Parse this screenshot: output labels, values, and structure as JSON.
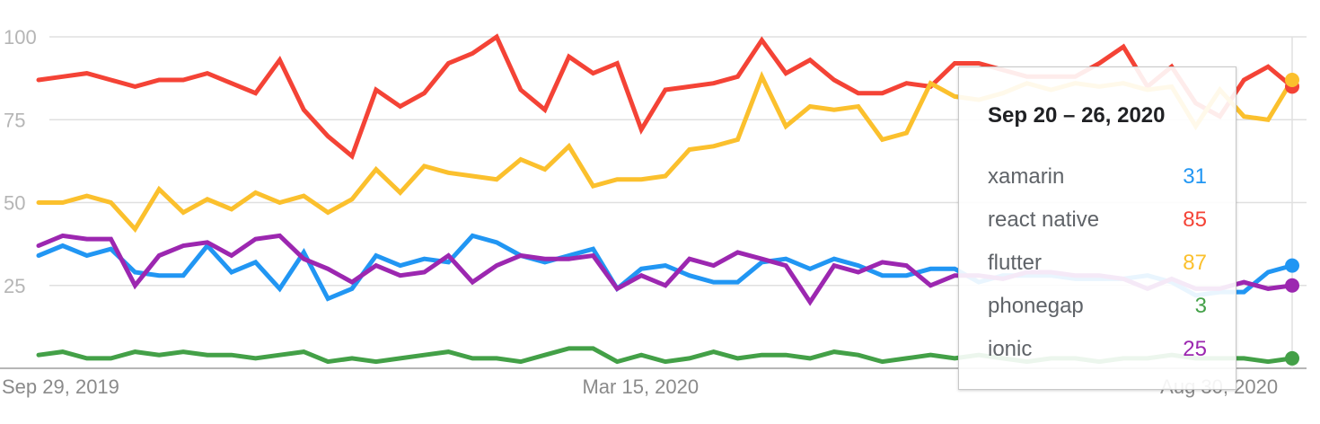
{
  "chart_data": {
    "type": "line",
    "y_ticks": [
      "100",
      "75",
      "50",
      "25"
    ],
    "ylim": [
      0,
      100
    ],
    "x_tick_labels": [
      "Sep 29, 2019",
      "Mar 15, 2020",
      "Aug 30, 2020"
    ],
    "x_tick_index": [
      0,
      24,
      48
    ],
    "grid": true,
    "series": [
      {
        "name": "xamarin",
        "color": "#2196f3",
        "values": [
          34,
          37,
          34,
          36,
          29,
          28,
          28,
          37,
          29,
          32,
          24,
          35,
          21,
          24,
          34,
          31,
          33,
          32,
          40,
          38,
          34,
          32,
          34,
          36,
          24,
          30,
          31,
          28,
          26,
          26,
          32,
          33,
          30,
          33,
          31,
          28,
          28,
          30,
          30,
          26,
          28,
          28,
          28,
          27,
          27,
          27,
          28,
          26,
          22,
          23,
          23,
          29,
          31
        ]
      },
      {
        "name": "react native",
        "color": "#f44336",
        "values": [
          87,
          88,
          89,
          87,
          85,
          87,
          87,
          89,
          86,
          83,
          93,
          78,
          70,
          64,
          84,
          79,
          83,
          92,
          95,
          100,
          84,
          78,
          94,
          89,
          92,
          72,
          84,
          85,
          86,
          88,
          99,
          89,
          93,
          87,
          83,
          83,
          86,
          85,
          92,
          92,
          90,
          88,
          88,
          88,
          92,
          97,
          85,
          91,
          80,
          76,
          87,
          91,
          85
        ]
      },
      {
        "name": "flutter",
        "color": "#fbc02d",
        "values": [
          50,
          50,
          52,
          50,
          42,
          54,
          47,
          51,
          48,
          53,
          50,
          52,
          47,
          51,
          60,
          53,
          61,
          59,
          58,
          57,
          63,
          60,
          67,
          55,
          57,
          57,
          58,
          66,
          67,
          69,
          88,
          73,
          79,
          78,
          79,
          69,
          71,
          86,
          82,
          81,
          83,
          86,
          84,
          86,
          85,
          86,
          84,
          85,
          73,
          84,
          76,
          75,
          87
        ]
      },
      {
        "name": "phonegap",
        "color": "#43a047",
        "values": [
          4,
          5,
          3,
          3,
          5,
          4,
          5,
          4,
          4,
          3,
          4,
          5,
          2,
          3,
          2,
          3,
          4,
          5,
          3,
          3,
          2,
          4,
          6,
          6,
          2,
          4,
          2,
          3,
          5,
          3,
          4,
          4,
          3,
          5,
          4,
          2,
          3,
          4,
          3,
          4,
          3,
          2,
          3,
          3,
          2,
          3,
          3,
          4,
          3,
          3,
          3,
          2,
          3
        ]
      },
      {
        "name": "ionic",
        "color": "#9c27b0",
        "values": [
          37,
          40,
          39,
          39,
          25,
          34,
          37,
          38,
          34,
          39,
          40,
          33,
          30,
          26,
          31,
          28,
          29,
          34,
          26,
          31,
          34,
          33,
          33,
          34,
          24,
          28,
          25,
          33,
          31,
          35,
          33,
          31,
          20,
          31,
          29,
          32,
          31,
          25,
          28,
          28,
          27,
          29,
          29,
          28,
          28,
          27,
          24,
          27,
          24,
          24,
          26,
          24,
          25
        ]
      }
    ]
  },
  "tooltip": {
    "title": "Sep 20 – 26, 2020",
    "rows": [
      {
        "name": "xamarin",
        "value": "31",
        "color": "#2196f3"
      },
      {
        "name": "react native",
        "value": "85",
        "color": "#f44336"
      },
      {
        "name": "flutter",
        "value": "87",
        "color": "#fbc02d"
      },
      {
        "name": "phonegap",
        "value": "3",
        "color": "#43a047"
      },
      {
        "name": "ionic",
        "value": "25",
        "color": "#9c27b0"
      }
    ]
  }
}
